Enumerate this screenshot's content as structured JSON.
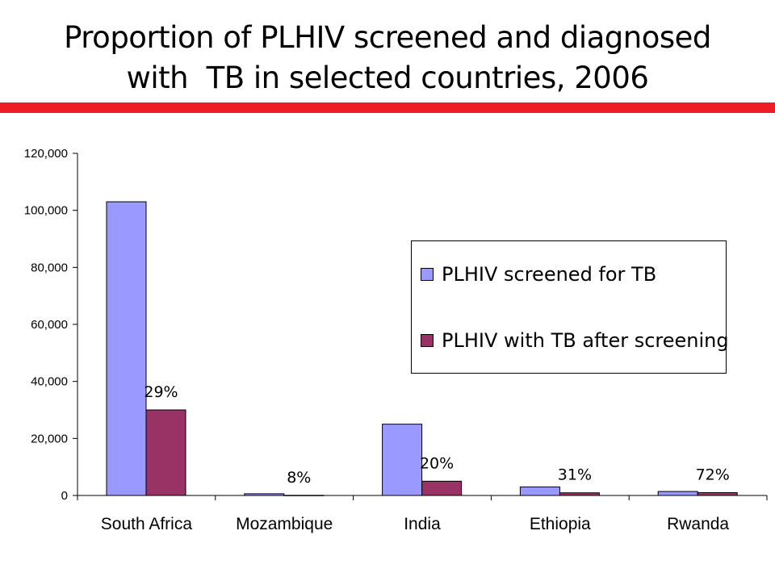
{
  "title": {
    "line1": "Proportion of PLHIV screened and diagnosed",
    "line2": "with  TB in selected countries, 2006"
  },
  "colors": {
    "title_rule": "#ee1c24",
    "screened": "#9999ff",
    "diagnosed": "#993366"
  },
  "chart_data": {
    "type": "bar",
    "title": "",
    "xlabel": "",
    "ylabel": "",
    "categories": [
      "South Africa",
      "Mozambique",
      "India",
      "Ethiopia",
      "Rwanda"
    ],
    "series": [
      {
        "name": "PLHIV screened for TB",
        "values": [
          103000,
          600,
          25000,
          3000,
          1400
        ]
      },
      {
        "name": "PLHIV with TB after screening",
        "values": [
          30000,
          48,
          5000,
          930,
          1000
        ]
      }
    ],
    "annotations": [
      "29%",
      "8%",
      "20%",
      "31%",
      "72%"
    ],
    "ylim": [
      0,
      120000
    ],
    "yticks": [
      0,
      20000,
      40000,
      60000,
      80000,
      100000,
      120000
    ],
    "ytick_labels": [
      "0",
      "20,000",
      "40,000",
      "60,000",
      "80,000",
      "100,000",
      "120,000"
    ],
    "grid": false,
    "legend_position": "right"
  }
}
